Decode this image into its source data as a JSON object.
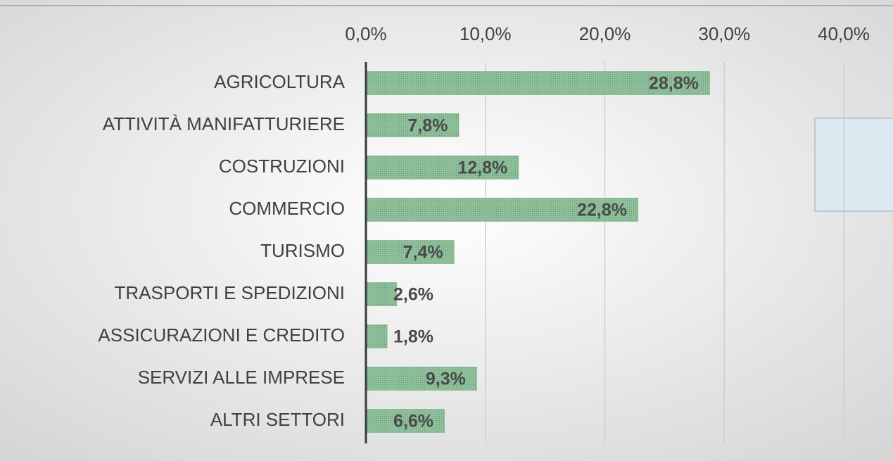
{
  "chart_data": {
    "type": "barh",
    "categories": [
      "AGRICOLTURA",
      "ATTIVITÀ MANIFATTURIERE",
      "COSTRUZIONI",
      "COMMERCIO",
      "TURISMO",
      "TRASPORTI E SPEDIZIONI",
      "ASSICURAZIONI E CREDITO",
      "SERVIZI ALLE IMPRESE",
      "ALTRI SETTORI"
    ],
    "values": [
      28.8,
      7.8,
      12.8,
      22.8,
      7.4,
      2.6,
      1.8,
      9.3,
      6.6
    ],
    "value_labels": [
      "28,8%",
      "7,8%",
      "12,8%",
      "22,8%",
      "7,4%",
      "2,6%",
      "1,8%",
      "9,3%",
      "6,6%"
    ],
    "color": "#86b592",
    "xlim": [
      0,
      40
    ],
    "xticks": [
      {
        "value": 0,
        "label": "0,0%"
      },
      {
        "value": 10,
        "label": "10,0%"
      },
      {
        "value": 20,
        "label": "20,0%"
      },
      {
        "value": 30,
        "label": "30,0%"
      },
      {
        "value": 40,
        "label": "40,0%"
      }
    ],
    "grid": true
  }
}
